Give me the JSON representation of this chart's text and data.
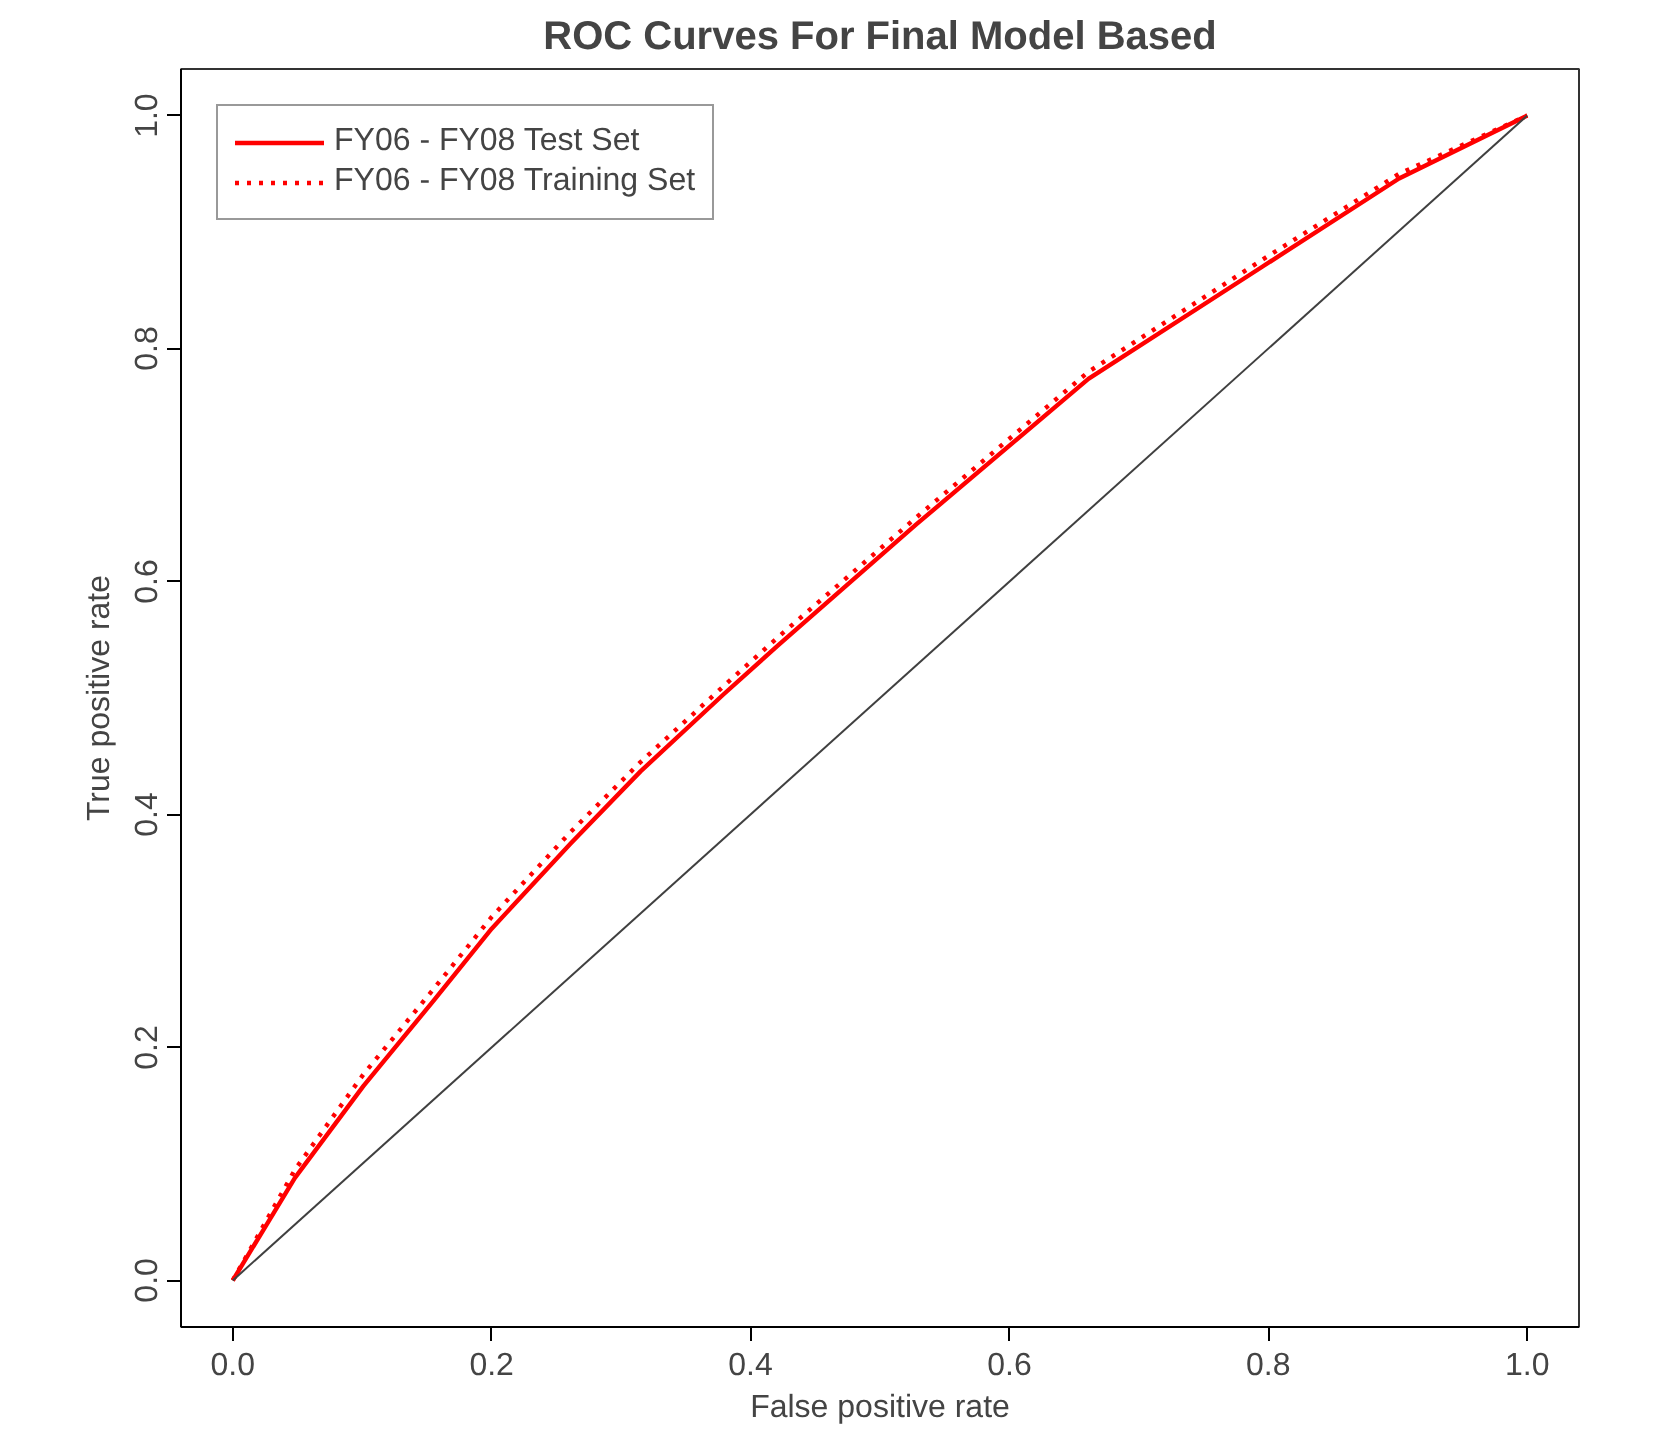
{
  "chart_data": {
    "type": "line",
    "title": "ROC Curves For Final Model Based",
    "xlabel": "False positive rate",
    "ylabel": "True positive rate",
    "xlim": [
      -0.04,
      1.04
    ],
    "ylim": [
      -0.04,
      1.04
    ],
    "xticks": [
      {
        "value": 0,
        "label": "0.0"
      },
      0.2,
      0.4,
      0.6,
      0.8,
      {
        "value": 1,
        "label": "1.0"
      }
    ],
    "yticks": [
      {
        "value": 0,
        "label": "0.0"
      },
      0.2,
      0.4,
      0.6,
      0.8,
      {
        "value": 1,
        "label": "1.0"
      }
    ],
    "grid": false,
    "legend": "top left",
    "series": [
      {
        "name": "FY06 - FY08 Test Set",
        "color": "#ff0000",
        "line_style": "solid",
        "x": [
          0,
          0.048,
          0.101,
          0.155,
          0.2,
          0.261,
          0.315,
          0.379,
          0.421,
          0.528,
          0.661,
          0.795,
          0.901,
          1
        ],
        "values": [
          0,
          0.088,
          0.167,
          0.24,
          0.302,
          0.375,
          0.437,
          0.503,
          0.545,
          0.649,
          0.774,
          0.87,
          0.946,
          1
        ]
      },
      {
        "name": "FY06 - FY08 Training Set",
        "color": "#ff0000",
        "line_style": "dotted",
        "x": [
          0,
          0.048,
          0.101,
          0.155,
          0.2,
          0.261,
          0.315,
          0.379,
          0.421,
          0.528,
          0.661,
          0.795,
          0.901,
          1
        ],
        "values": [
          0,
          0.095,
          0.177,
          0.25,
          0.312,
          0.385,
          0.445,
          0.51,
          0.552,
          0.655,
          0.78,
          0.876,
          0.95,
          1
        ]
      },
      {
        "color": "#404040",
        "line_style": "solid",
        "x": [
          0,
          1
        ],
        "values": [
          0,
          1
        ]
      }
    ]
  }
}
